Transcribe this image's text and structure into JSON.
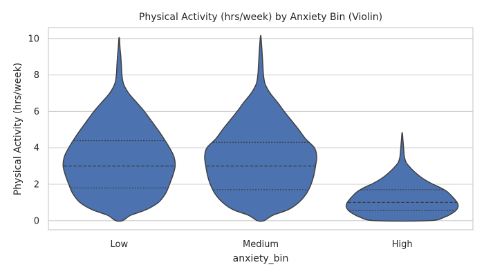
{
  "chart_data": {
    "type": "violin",
    "title": "Physical Activity (hrs/week) by Anxiety Bin (Violin)",
    "xlabel": "anxiety_bin",
    "ylabel": "Physical Activity (hrs/week)",
    "categories": [
      "Low",
      "Medium",
      "High"
    ],
    "ylim": [
      -0.5,
      10.6
    ],
    "yticks": [
      0,
      2,
      4,
      6,
      8,
      10
    ],
    "grid": true,
    "fill_color": "#4c72b0",
    "edge_color": "#404040",
    "violins": [
      {
        "category": "Low",
        "quartiles": [
          1.8,
          3.0,
          4.4
        ],
        "profile": [
          [
            0.0,
            0.06
          ],
          [
            0.3,
            0.21
          ],
          [
            0.6,
            0.48
          ],
          [
            1.0,
            0.7
          ],
          [
            1.5,
            0.83
          ],
          [
            2.0,
            0.9
          ],
          [
            2.5,
            0.96
          ],
          [
            3.0,
            1.0
          ],
          [
            3.5,
            0.98
          ],
          [
            4.0,
            0.9
          ],
          [
            4.5,
            0.8
          ],
          [
            5.0,
            0.69
          ],
          [
            5.5,
            0.57
          ],
          [
            6.0,
            0.45
          ],
          [
            6.5,
            0.31
          ],
          [
            7.0,
            0.17
          ],
          [
            7.5,
            0.08
          ],
          [
            8.0,
            0.05
          ],
          [
            8.5,
            0.04
          ],
          [
            9.0,
            0.03
          ],
          [
            9.5,
            0.015
          ],
          [
            10.0,
            0.005
          ]
        ]
      },
      {
        "category": "Medium",
        "quartiles": [
          1.7,
          3.0,
          4.3
        ],
        "profile": [
          [
            0.0,
            0.06
          ],
          [
            0.3,
            0.22
          ],
          [
            0.6,
            0.49
          ],
          [
            1.0,
            0.68
          ],
          [
            1.5,
            0.82
          ],
          [
            2.0,
            0.9
          ],
          [
            2.5,
            0.95
          ],
          [
            3.0,
            0.98
          ],
          [
            3.5,
            1.0
          ],
          [
            4.0,
            0.96
          ],
          [
            4.5,
            0.8
          ],
          [
            5.0,
            0.68
          ],
          [
            5.5,
            0.55
          ],
          [
            6.0,
            0.42
          ],
          [
            6.5,
            0.3
          ],
          [
            7.0,
            0.17
          ],
          [
            7.5,
            0.08
          ],
          [
            8.0,
            0.05
          ],
          [
            8.5,
            0.04
          ],
          [
            9.0,
            0.03
          ],
          [
            9.5,
            0.02
          ],
          [
            10.1,
            0.005
          ]
        ]
      },
      {
        "category": "High",
        "quartiles": [
          0.55,
          1.0,
          1.7
        ],
        "profile": [
          [
            0.0,
            0.49
          ],
          [
            0.2,
            0.76
          ],
          [
            0.4,
            0.89
          ],
          [
            0.6,
            0.97
          ],
          [
            0.8,
            1.0
          ],
          [
            1.0,
            0.98
          ],
          [
            1.2,
            0.93
          ],
          [
            1.4,
            0.87
          ],
          [
            1.6,
            0.8
          ],
          [
            1.8,
            0.69
          ],
          [
            2.0,
            0.55
          ],
          [
            2.2,
            0.43
          ],
          [
            2.4,
            0.33
          ],
          [
            2.6,
            0.25
          ],
          [
            2.8,
            0.18
          ],
          [
            3.0,
            0.12
          ],
          [
            3.2,
            0.07
          ],
          [
            3.5,
            0.04
          ],
          [
            3.8,
            0.03
          ],
          [
            4.2,
            0.02
          ],
          [
            4.5,
            0.012
          ],
          [
            4.8,
            0.004
          ]
        ]
      }
    ]
  }
}
